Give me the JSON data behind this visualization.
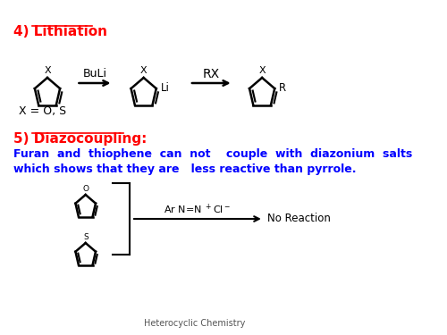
{
  "bg_color": "#ffffff",
  "section4_label": "4) Lithiation",
  "section4_color": "red",
  "section5_label": "5) Diazocoupling:",
  "section5_color": "red",
  "desc_text1": "Furan  and  thiophene  can  not    couple  with  diazonium  salts",
  "desc_text2": "which shows that they are   less reactive than pyrrole.",
  "desc_color": "blue",
  "x_label": "X = O, S",
  "buli_label": "BuLi",
  "rx_label": "RX",
  "li_label": "Li",
  "r_label": "R",
  "x_hetero": "X",
  "no_reaction": "No Reaction",
  "footer": "Heterocyclic Chemistry",
  "footer_color": "#555555"
}
